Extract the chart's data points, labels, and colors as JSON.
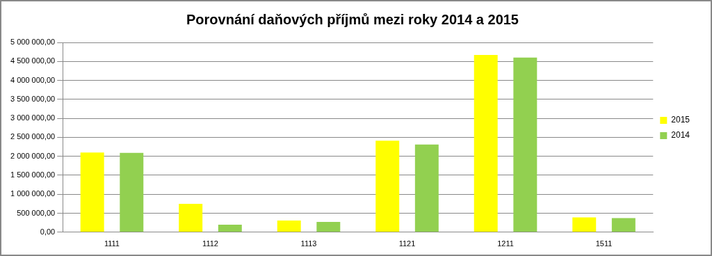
{
  "chart_data": {
    "type": "bar",
    "title": "Porovnání daňových příjmů mezi roky 2014 a 2015",
    "categories": [
      "1111",
      "1112",
      "1113",
      "1121",
      "1211",
      "1511"
    ],
    "series": [
      {
        "name": "2015",
        "color": "#ffff00",
        "values": [
          2100000,
          750000,
          310000,
          2410000,
          4670000,
          390000
        ]
      },
      {
        "name": "2014",
        "color": "#92d050",
        "values": [
          2090000,
          200000,
          270000,
          2310000,
          4600000,
          370000
        ]
      }
    ],
    "ylim": [
      0,
      5000000
    ],
    "yticks": [
      {
        "value": 0,
        "label": "0,00"
      },
      {
        "value": 500000,
        "label": "500 000,00"
      },
      {
        "value": 1000000,
        "label": "1 000 000,00"
      },
      {
        "value": 1500000,
        "label": "1 500 000,00"
      },
      {
        "value": 2000000,
        "label": "2 000 000,00"
      },
      {
        "value": 2500000,
        "label": "2 500 000,00"
      },
      {
        "value": 3000000,
        "label": "3 000 000,00"
      },
      {
        "value": 3500000,
        "label": "3 500 000,00"
      },
      {
        "value": 4000000,
        "label": "4 000 000,00"
      },
      {
        "value": 4500000,
        "label": "4 500 000,00"
      },
      {
        "value": 5000000,
        "label": "5 000 000,00"
      }
    ],
    "grid": "y",
    "legend": "right"
  }
}
